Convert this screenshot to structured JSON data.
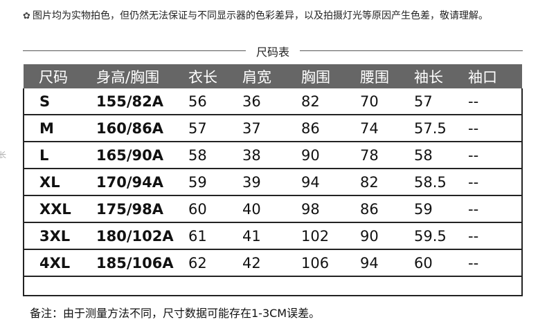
{
  "notice": {
    "icon": "flower-icon",
    "text": "图片均为实物拍色，但仍然无法保证与不同显示器的色彩差异，以及拍摄灯光等原因产生色差，敬请理解。"
  },
  "stray_text": "长",
  "title": "尺码表",
  "table": {
    "headers": [
      "尺码",
      "身高/胸围",
      "衣长",
      "肩宽",
      "胸围",
      "腰围",
      "袖长",
      "袖口"
    ],
    "rows": [
      [
        "S",
        "155/82A",
        "56",
        "36",
        "82",
        "70",
        "57",
        "--"
      ],
      [
        "M",
        "160/86A",
        "57",
        "37",
        "86",
        "74",
        "57.5",
        "--"
      ],
      [
        "L",
        "165/90A",
        "58",
        "38",
        "90",
        "78",
        "58",
        "--"
      ],
      [
        "XL",
        "170/94A",
        "59",
        "39",
        "94",
        "82",
        "58.5",
        "--"
      ],
      [
        "XXL",
        "175/98A",
        "60",
        "40",
        "98",
        "86",
        "59",
        "--"
      ],
      [
        "3XL",
        "180/102A",
        "61",
        "41",
        "102",
        "90",
        "59.5",
        "--"
      ],
      [
        "4XL",
        "185/106A",
        "62",
        "42",
        "106",
        "94",
        "60",
        "--"
      ]
    ]
  },
  "note": "备注：由于测量方法不同，尺寸数据可能存在1-3CM误差。",
  "colors": {
    "header_bg": "#666666",
    "header_text": "#ffffff",
    "border": "#222222"
  }
}
